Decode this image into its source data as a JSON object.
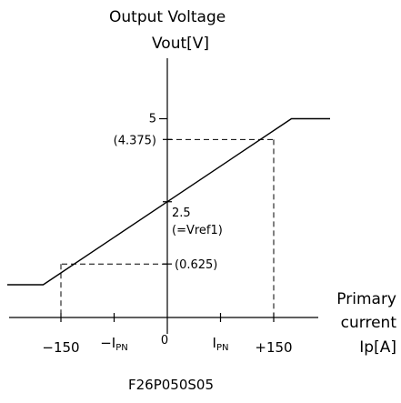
{
  "chart_data": {
    "type": "line",
    "ylabel_line1": "Output Voltage",
    "ylabel_line2": "Vout[V]",
    "xlabel_line1": "Primary",
    "xlabel_line2": "current",
    "xlabel_line3": "Ip[A]",
    "caption": "F26P050S05",
    "xlim": [
      -190,
      190
    ],
    "ylim": [
      -1.4,
      5.9
    ],
    "x_ticks": [
      {
        "value": -150,
        "label": "−150",
        "sub": ""
      },
      {
        "value": -75,
        "label": "−I",
        "sub": "PN"
      },
      {
        "value": 0,
        "label": "0",
        "sub": ""
      },
      {
        "value": 75,
        "label": "I",
        "sub": "PN"
      },
      {
        "value": 150,
        "label": "+150",
        "sub": ""
      }
    ],
    "y_ticks": [
      {
        "value": 5,
        "label": "5"
      },
      {
        "value": 4.375,
        "label": "(4.375)"
      },
      {
        "value": 0.625,
        "label": "(0.625)"
      }
    ],
    "origin_annotation": {
      "value": 2.5,
      "line1": "2.5",
      "line2": "(=Vref1)"
    },
    "series": [
      {
        "x": [
          -230,
          -175,
          175,
          230
        ],
        "y": [
          0.0,
          0.0,
          5.0,
          5.0
        ]
      }
    ],
    "guides": [
      {
        "x": -150,
        "y": 0.625
      },
      {
        "x": 150,
        "y": 4.375
      }
    ],
    "grid": false
  }
}
